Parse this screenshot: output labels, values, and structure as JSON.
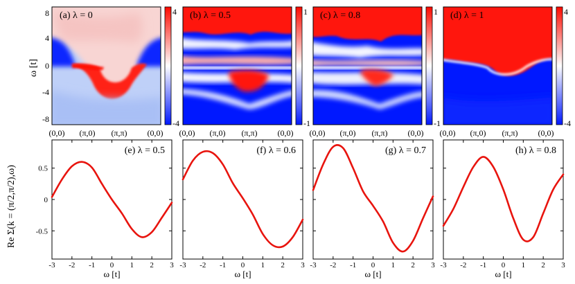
{
  "chart_data": [
    {
      "type": "heatmap",
      "panel": "a",
      "title": "(a) λ = 0",
      "ylabel": "ω [t]",
      "y_ticks": [
        "8",
        "4",
        "0",
        "-4",
        "-8"
      ],
      "y_tick_values": [
        8,
        4,
        0,
        -4,
        -8
      ],
      "ylim": [
        -9.5,
        9.5
      ],
      "x_ticks": [
        "(0,0)",
        "(π,0)",
        "(π,π)",
        "(0,0)"
      ],
      "colorbar_ticks": [
        "4",
        "-4"
      ],
      "colorbar_range": [
        -4,
        4
      ],
      "colormap": [
        "#0018ff",
        "#ffffff",
        "#ff0a00"
      ]
    },
    {
      "type": "heatmap",
      "panel": "b",
      "title": "(b) λ = 0.5",
      "ylim": [
        -9.5,
        9.5
      ],
      "x_ticks": [
        "(0,0)",
        "(π,0)",
        "(π,π)",
        "(0,0)"
      ],
      "colorbar_ticks": [
        "1",
        "-1"
      ],
      "colorbar_range": [
        -1,
        1
      ],
      "colormap": [
        "#0018ff",
        "#ffffff",
        "#ff0a00"
      ]
    },
    {
      "type": "heatmap",
      "panel": "c",
      "title": "(c) λ = 0.8",
      "ylim": [
        -9.5,
        9.5
      ],
      "x_ticks": [
        "(0,0)",
        "(π,0)",
        "(π,π)",
        "(0,0)"
      ],
      "colorbar_ticks": [
        "1",
        "-1"
      ],
      "colorbar_range": [
        -1,
        1
      ],
      "colormap": [
        "#0018ff",
        "#ffffff",
        "#ff0a00"
      ]
    },
    {
      "type": "heatmap",
      "panel": "d",
      "title": "(d) λ = 1",
      "ylim": [
        -9.5,
        9.5
      ],
      "x_ticks": [
        "(0,0)",
        "(π,0)",
        "(π,π)",
        "(0,0)"
      ],
      "colorbar_ticks": [
        "4",
        "-4"
      ],
      "colorbar_range": [
        -4,
        4
      ],
      "colormap": [
        "#0018ff",
        "#ffffff",
        "#ff0a00"
      ]
    },
    {
      "type": "line",
      "panel": "e",
      "title": "(e) λ = 0.5",
      "xlabel": "ω [t]",
      "ylabel": "Re Σ(k = (π/2,π/2),ω)",
      "xlim": [
        -3,
        3
      ],
      "ylim": [
        -0.95,
        0.95
      ],
      "x_ticks": [
        -3,
        -2,
        -1,
        0,
        1,
        2,
        3
      ],
      "y_ticks": [
        0.5,
        0,
        -0.5
      ],
      "y_tick_labels": [
        "0.5",
        "0",
        "-0.5"
      ],
      "color": "#e8140e",
      "x": [
        -3,
        -2.5,
        -2,
        -1.5,
        -1,
        -0.5,
        0,
        0.5,
        1,
        1.5,
        2,
        2.5,
        3
      ],
      "y": [
        0.04,
        0.32,
        0.53,
        0.6,
        0.51,
        0.25,
        0.0,
        -0.22,
        -0.47,
        -0.6,
        -0.52,
        -0.29,
        -0.05
      ]
    },
    {
      "type": "line",
      "panel": "f",
      "title": "(f) λ = 0.6",
      "xlabel": "ω [t]",
      "xlim": [
        -3,
        3
      ],
      "ylim": [
        -0.95,
        0.95
      ],
      "x_ticks": [
        -3,
        -2,
        -1,
        0,
        1,
        2,
        3
      ],
      "color": "#e8140e",
      "x": [
        -3,
        -2.5,
        -2,
        -1.5,
        -1,
        -0.5,
        0,
        0.5,
        1,
        1.5,
        2,
        2.5,
        3
      ],
      "y": [
        0.32,
        0.62,
        0.76,
        0.74,
        0.56,
        0.26,
        0.02,
        -0.24,
        -0.55,
        -0.73,
        -0.75,
        -0.6,
        -0.32
      ]
    },
    {
      "type": "line",
      "panel": "g",
      "title": "(g) λ = 0.7",
      "xlabel": "ω [t]",
      "xlim": [
        -3,
        3
      ],
      "ylim": [
        -0.95,
        0.95
      ],
      "x_ticks": [
        -3,
        -2,
        -1,
        0,
        1,
        2,
        3
      ],
      "color": "#e8140e",
      "x": [
        -3,
        -2.5,
        -2,
        -1.5,
        -1,
        -0.5,
        0,
        0.5,
        1,
        1.5,
        2,
        2.5,
        3
      ],
      "y": [
        0.15,
        0.56,
        0.84,
        0.82,
        0.5,
        0.13,
        -0.1,
        -0.35,
        -0.69,
        -0.83,
        -0.66,
        -0.3,
        0.05
      ]
    },
    {
      "type": "line",
      "panel": "h",
      "title": "(h) λ = 0.8",
      "xlabel": "ω [t]",
      "xlim": [
        -3,
        3
      ],
      "ylim": [
        -0.95,
        0.95
      ],
      "x_ticks": [
        -3,
        -2,
        -1,
        0,
        1,
        2,
        3
      ],
      "color": "#e8140e",
      "x": [
        -3,
        -2.5,
        -2,
        -1.5,
        -1,
        -0.5,
        0,
        0.5,
        1,
        1.5,
        2,
        2.5,
        3
      ],
      "y": [
        -0.42,
        -0.15,
        0.2,
        0.52,
        0.68,
        0.52,
        0.16,
        -0.3,
        -0.64,
        -0.6,
        -0.22,
        0.16,
        0.4
      ]
    }
  ]
}
